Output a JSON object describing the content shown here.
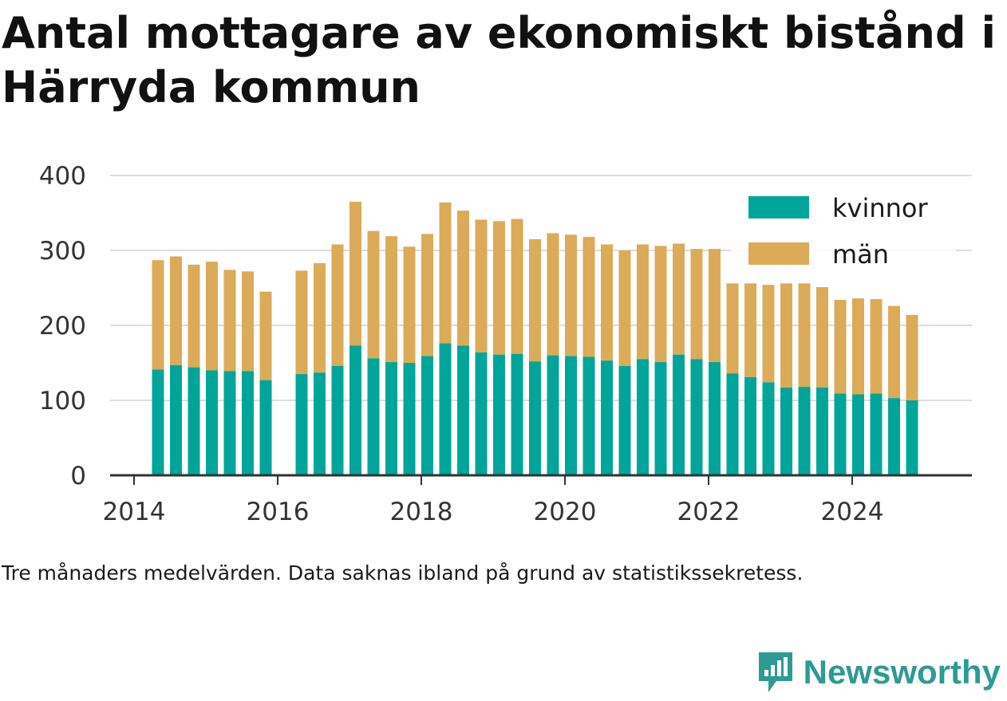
{
  "title": "Antal mottagare av ekonomiskt bistånd i Härryda kommun",
  "note": "Tre månaders medelvärden. Data saknas ibland på grund av statistikssekretess.",
  "brand": {
    "name": "Newsworthy",
    "color": "#2e9a94"
  },
  "chart_data": {
    "type": "bar",
    "stacked": true,
    "title": "Antal mottagare av ekonomiskt bistånd i Härryda kommun",
    "xlabel": "",
    "ylabel": "",
    "ylim": [
      0,
      400
    ],
    "yticks": [
      0,
      100,
      200,
      300,
      400
    ],
    "xticks": [
      "2014",
      "2016",
      "2018",
      "2020",
      "2022",
      "2024"
    ],
    "xlim": [
      "2013-09",
      "2025-09"
    ],
    "grid": true,
    "legend_position": "top-right",
    "x": [
      "2014-05",
      "2014-08",
      "2014-11",
      "2015-02",
      "2015-05",
      "2015-08",
      "2015-11",
      "2016-02",
      "2016-05",
      "2016-08",
      "2016-11",
      "2017-02",
      "2017-05",
      "2017-08",
      "2017-11",
      "2018-02",
      "2018-05",
      "2018-08",
      "2018-11",
      "2019-02",
      "2019-05",
      "2019-08",
      "2019-11",
      "2020-02",
      "2020-05",
      "2020-08",
      "2020-11",
      "2021-02",
      "2021-05",
      "2021-08",
      "2021-11",
      "2022-02",
      "2022-05",
      "2022-08",
      "2022-11",
      "2023-02",
      "2023-05",
      "2023-08",
      "2023-11",
      "2024-02",
      "2024-05",
      "2024-08",
      "2024-11"
    ],
    "series": [
      {
        "name": "kvinnor",
        "color": "#00a59a",
        "values": [
          141,
          147,
          144,
          140,
          139,
          139,
          127,
          null,
          135,
          137,
          146,
          173,
          156,
          151,
          150,
          159,
          176,
          173,
          164,
          161,
          162,
          152,
          160,
          159,
          158,
          153,
          146,
          155,
          151,
          161,
          155,
          151,
          136,
          131,
          124,
          117,
          118,
          117,
          109,
          108,
          109,
          103,
          100
        ]
      },
      {
        "name": "män",
        "color": "#dbab5a",
        "values": [
          146,
          145,
          137,
          145,
          135,
          133,
          118,
          null,
          138,
          146,
          162,
          192,
          170,
          168,
          155,
          163,
          188,
          180,
          177,
          178,
          180,
          163,
          163,
          162,
          160,
          155,
          154,
          153,
          155,
          148,
          147,
          151,
          120,
          125,
          130,
          139,
          138,
          134,
          125,
          128,
          126,
          123,
          114
        ]
      }
    ]
  }
}
